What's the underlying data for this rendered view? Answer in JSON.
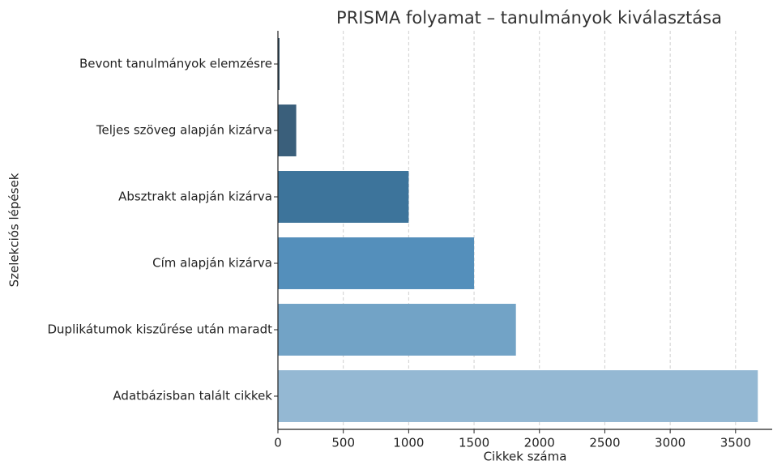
{
  "chart_data": {
    "type": "bar",
    "orientation": "horizontal",
    "title": "PRISMA folyamat – tanulmányok kiválasztása",
    "xlabel": "Cikkek száma",
    "ylabel": "Szelekciós lépések",
    "categories": [
      "Bevont tanulmányok elemzésre",
      "Teljes szöveg alapján kizárva",
      "Absztrakt alapján kizárva",
      "Cím alapján kizárva",
      "Duplikátumok kiszűrése után maradt",
      "Adatbázisban talált cikkek"
    ],
    "values": [
      12,
      140,
      1000,
      1500,
      1820,
      3670
    ],
    "colors": [
      "#2d4a5e",
      "#3a5f7b",
      "#3d749b",
      "#548fbb",
      "#72a3c6",
      "#94b8d3"
    ],
    "xlim": [
      0,
      3780
    ],
    "xticks": [
      0,
      500,
      1000,
      1500,
      2000,
      2500,
      3000,
      3500
    ],
    "grid": true
  }
}
